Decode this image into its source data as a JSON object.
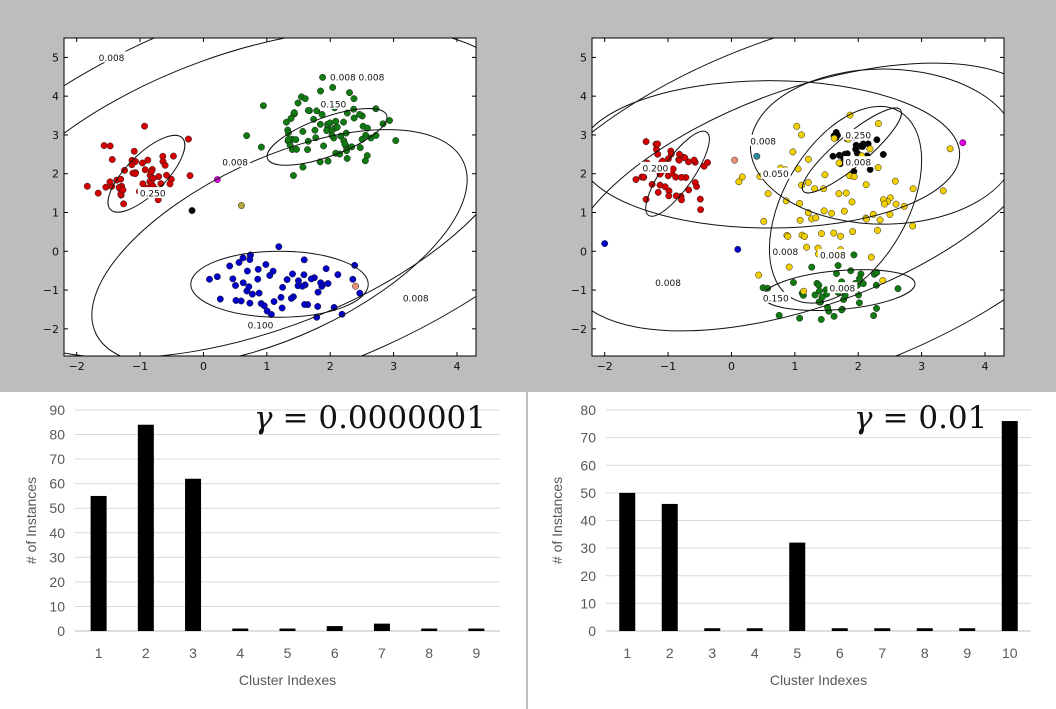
{
  "chart_data": [
    {
      "type": "scatter",
      "id": "scatter-left",
      "xlim": [
        -2.2,
        4.3
      ],
      "ylim": [
        -2.7,
        5.5
      ],
      "xticks": [
        -2,
        -1,
        0,
        1,
        2,
        3,
        4
      ],
      "yticks": [
        -2,
        -1,
        0,
        1,
        2,
        3,
        4,
        5
      ],
      "colors": {
        "red": "#d40000",
        "green": "#0f7a0f",
        "blue": "#0000c8",
        "black": "#000000",
        "magenta": "#e000e0",
        "olive": "#b4a83a",
        "salmon": "#e8907a"
      },
      "clusters": [
        {
          "color": "red",
          "center": [
            -1.0,
            2.0
          ],
          "spread": [
            0.55,
            0.75
          ],
          "n": 55,
          "seed": 11
        },
        {
          "color": "green",
          "center": [
            1.9,
            3.1
          ],
          "spread": [
            0.75,
            0.75
          ],
          "n": 84,
          "seed": 23
        },
        {
          "color": "blue",
          "center": [
            1.3,
            -0.9
          ],
          "spread": [
            0.85,
            0.7
          ],
          "n": 62,
          "seed": 37
        }
      ],
      "extra_points": [
        {
          "x": -0.18,
          "y": 1.05,
          "color": "black"
        },
        {
          "x": 0.22,
          "y": 1.85,
          "color": "magenta"
        },
        {
          "x": 0.6,
          "y": 1.18,
          "color": "olive"
        },
        {
          "x": 2.4,
          "y": -0.9,
          "color": "salmon"
        }
      ],
      "contours": [
        {
          "cx": -0.9,
          "cy": 2.0,
          "rx": 0.8,
          "ry": 0.5,
          "rot": 45
        },
        {
          "cx": 1.95,
          "cy": 2.95,
          "rx": 1.0,
          "ry": 0.5,
          "rot": 20
        },
        {
          "cx": 1.2,
          "cy": -0.85,
          "rx": 1.4,
          "ry": 0.85,
          "rot": 0
        },
        {
          "cx": 1.2,
          "cy": 0.1,
          "rx": 3.2,
          "ry": 2.3,
          "rot": 25
        },
        {
          "cx": 0.7,
          "cy": 1.5,
          "rx": 4.6,
          "ry": 3.6,
          "rot": 20
        },
        {
          "cx": 1.0,
          "cy": 1.5,
          "rx": 6.0,
          "ry": 4.8,
          "rot": 20
        }
      ],
      "contour_labels": [
        {
          "text": "0.008",
          "x": -1.45,
          "y": 5.0
        },
        {
          "text": "0.008",
          "x": 2.2,
          "y": 4.5
        },
        {
          "text": "0.008",
          "x": 2.65,
          "y": 4.5
        },
        {
          "text": "0.150",
          "x": 2.05,
          "y": 3.8
        },
        {
          "text": "0.008",
          "x": 0.5,
          "y": 2.3
        },
        {
          "text": "0.250",
          "x": -0.8,
          "y": 1.5
        },
        {
          "text": "0.100",
          "x": 0.9,
          "y": -1.9
        },
        {
          "text": "0.008",
          "x": 3.35,
          "y": -1.2
        }
      ]
    },
    {
      "type": "scatter",
      "id": "scatter-right",
      "xlim": [
        -2.2,
        4.3
      ],
      "ylim": [
        -2.7,
        5.5
      ],
      "xticks": [
        -2,
        -1,
        0,
        1,
        2,
        3,
        4
      ],
      "yticks": [
        -2,
        -1,
        0,
        1,
        2,
        3,
        4,
        5
      ],
      "colors": {
        "red": "#d40000",
        "green": "#0f7a0f",
        "blue": "#0000c8",
        "black": "#000000",
        "magenta": "#e000e0",
        "yellow": "#f2d000",
        "teal": "#2a8a9a",
        "salmon": "#e8907a"
      },
      "clusters": [
        {
          "color": "red",
          "center": [
            -1.0,
            2.0
          ],
          "spread": [
            0.55,
            0.75
          ],
          "n": 50,
          "seed": 51
        },
        {
          "color": "green",
          "center": [
            1.5,
            -1.0
          ],
          "spread": [
            0.8,
            0.7
          ],
          "n": 46,
          "seed": 63
        },
        {
          "color": "black",
          "center": [
            1.9,
            2.6
          ],
          "spread": [
            0.4,
            0.5
          ],
          "n": 32,
          "seed": 77
        },
        {
          "color": "yellow",
          "center": [
            1.8,
            1.3
          ],
          "spread": [
            1.3,
            1.9
          ],
          "n": 76,
          "seed": 89
        }
      ],
      "extra_points": [
        {
          "x": 0.1,
          "y": 0.05,
          "color": "blue"
        },
        {
          "x": 0.4,
          "y": 2.45,
          "color": "teal"
        },
        {
          "x": 3.65,
          "y": 2.8,
          "color": "magenta"
        },
        {
          "x": 0.05,
          "y": 2.35,
          "color": "salmon"
        },
        {
          "x": -2.0,
          "y": 0.2,
          "color": "blue"
        }
      ],
      "contours": [
        {
          "cx": -0.85,
          "cy": 2.0,
          "rx": 0.8,
          "ry": 0.4,
          "rot": 55
        },
        {
          "cx": 1.9,
          "cy": 2.6,
          "rx": 1.0,
          "ry": 0.4,
          "rot": 40
        },
        {
          "cx": 1.7,
          "cy": -1.0,
          "rx": 1.2,
          "ry": 0.5,
          "rot": 5
        },
        {
          "cx": 1.8,
          "cy": 1.2,
          "rx": 1.7,
          "ry": 1.6,
          "rot": 60
        },
        {
          "cx": 0.6,
          "cy": 2.5,
          "rx": 3.0,
          "ry": 1.9,
          "rot": 0
        },
        {
          "cx": 2.4,
          "cy": 2.7,
          "rx": 2.1,
          "ry": 2.0,
          "rot": 0
        },
        {
          "cx": 1.2,
          "cy": 1.4,
          "rx": 4.0,
          "ry": 2.8,
          "rot": 20
        },
        {
          "cx": 1.3,
          "cy": 1.2,
          "rx": 5.4,
          "ry": 4.4,
          "rot": 20
        }
      ],
      "contour_labels": [
        {
          "text": "0.200",
          "x": -1.2,
          "y": 2.15
        },
        {
          "text": "0.008",
          "x": 0.5,
          "y": 2.85
        },
        {
          "text": "0.050",
          "x": 0.7,
          "y": 2.0
        },
        {
          "text": "0.250",
          "x": 2.0,
          "y": 3.0
        },
        {
          "text": "0.008",
          "x": 2.0,
          "y": 2.3
        },
        {
          "text": "0.008",
          "x": 0.85,
          "y": 0.0
        },
        {
          "text": "0.008",
          "x": 1.6,
          "y": -0.1
        },
        {
          "text": "0.150",
          "x": 0.7,
          "y": -1.2
        },
        {
          "text": "0.008",
          "x": 1.75,
          "y": -0.95
        },
        {
          "text": "0.008",
          "x": -1.0,
          "y": -0.8
        }
      ]
    },
    {
      "type": "bar",
      "id": "bar-left",
      "categories": [
        "1",
        "2",
        "3",
        "4",
        "5",
        "6",
        "7",
        "8",
        "9"
      ],
      "values": [
        55,
        84,
        62,
        1,
        1,
        2,
        3,
        1,
        1
      ],
      "ylim": [
        0,
        90
      ],
      "yticks": [
        0,
        10,
        20,
        30,
        40,
        50,
        60,
        70,
        80,
        90
      ],
      "xlabel": "Cluster Indexes",
      "ylabel": "# of Instances",
      "annotation": "= 0.0000001"
    },
    {
      "type": "bar",
      "id": "bar-right",
      "categories": [
        "1",
        "2",
        "3",
        "4",
        "5",
        "6",
        "7",
        "8",
        "9",
        "10"
      ],
      "values": [
        50,
        46,
        1,
        1,
        32,
        1,
        1,
        1,
        1,
        76
      ],
      "ylim": [
        0,
        80
      ],
      "yticks": [
        0,
        10,
        20,
        30,
        40,
        50,
        60,
        70,
        80
      ],
      "xlabel": "Cluster Indexes",
      "ylabel": "# of Instances",
      "annotation": "= 0.01"
    }
  ],
  "gamma_symbol": "γ"
}
